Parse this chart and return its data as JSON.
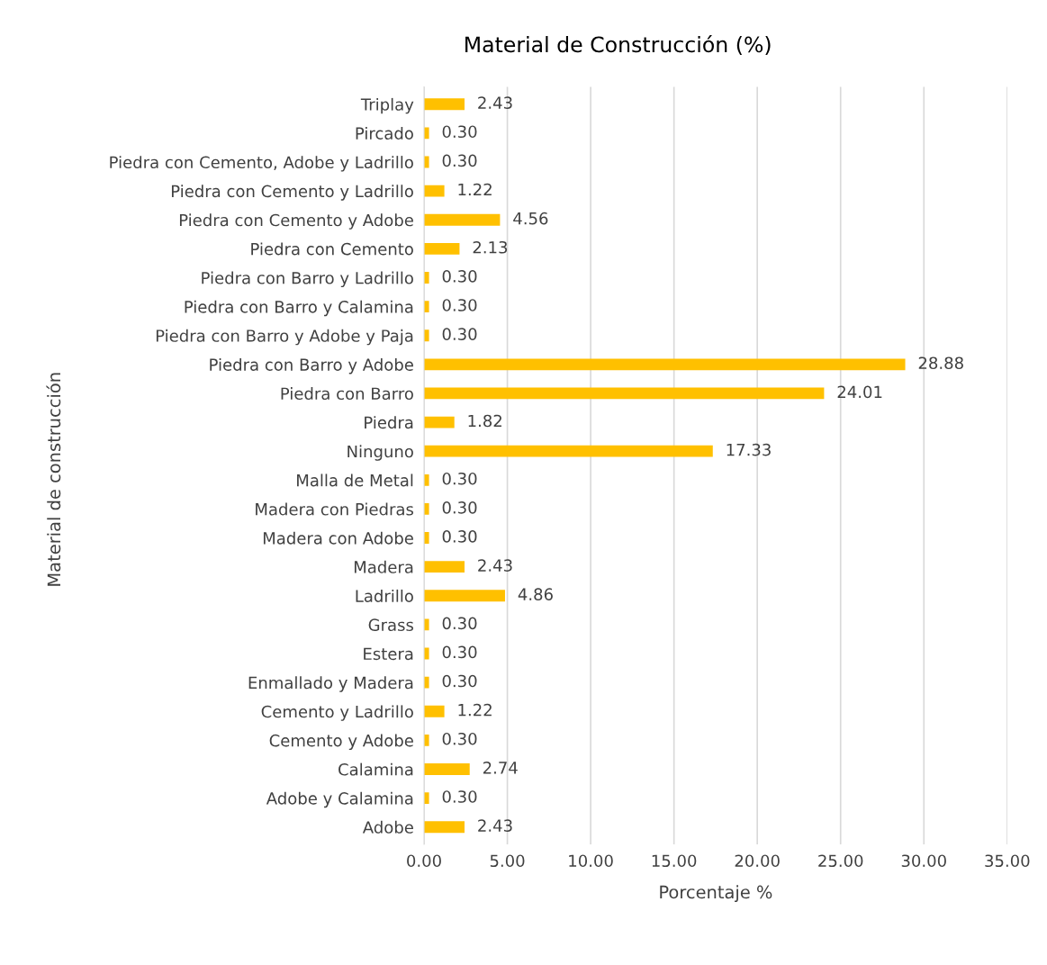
{
  "chart_data": {
    "type": "bar",
    "orientation": "horizontal",
    "title": "Material de Construcción (%)",
    "xlabel": "Porcentaje %",
    "ylabel": "Material de construcción",
    "categories": [
      "Triplay",
      "Pircado",
      "Piedra con Cemento, Adobe y Ladrillo",
      "Piedra con Cemento y Ladrillo",
      "Piedra con Cemento y Adobe",
      "Piedra con Cemento",
      "Piedra con Barro y Ladrillo",
      "Piedra con Barro y Calamina",
      "Piedra con Barro y Adobe y Paja",
      "Piedra con Barro y Adobe",
      "Piedra con Barro",
      "Piedra",
      "Ninguno",
      "Malla de Metal",
      "Madera con Piedras",
      "Madera con Adobe",
      "Madera",
      "Ladrillo",
      "Grass",
      "Estera",
      "Enmallado y Madera",
      "Cemento y Ladrillo",
      "Cemento y Adobe",
      "Calamina",
      "Adobe y Calamina",
      "Adobe"
    ],
    "values": [
      2.43,
      0.3,
      0.3,
      1.22,
      4.56,
      2.13,
      0.3,
      0.3,
      0.3,
      28.88,
      24.01,
      1.82,
      17.33,
      0.3,
      0.3,
      0.3,
      2.43,
      4.86,
      0.3,
      0.3,
      0.3,
      1.22,
      0.3,
      2.74,
      0.3,
      2.43
    ],
    "value_labels": [
      "2.43",
      "0.30",
      "0.30",
      "1.22",
      "4.56",
      "2.13",
      "0.30",
      "0.30",
      "0.30",
      "28.88",
      "24.01",
      "1.82",
      "17.33",
      "0.30",
      "0.30",
      "0.30",
      "2.43",
      "4.86",
      "0.30",
      "0.30",
      "0.30",
      "1.22",
      "0.30",
      "2.74",
      "0.30",
      "2.43"
    ],
    "color": "#ffc000",
    "xlim": [
      0,
      35
    ],
    "xticks": [
      {
        "value": 0,
        "label": "0.00"
      },
      {
        "value": 5,
        "label": "5.00"
      },
      {
        "value": 10,
        "label": "10.00"
      },
      {
        "value": 15,
        "label": "15.00"
      },
      {
        "value": 20,
        "label": "20.00"
      },
      {
        "value": 25,
        "label": "25.00"
      },
      {
        "value": 30,
        "label": "30.00"
      },
      {
        "value": 35,
        "label": "35.00"
      }
    ],
    "grid": "x",
    "legend": false
  }
}
